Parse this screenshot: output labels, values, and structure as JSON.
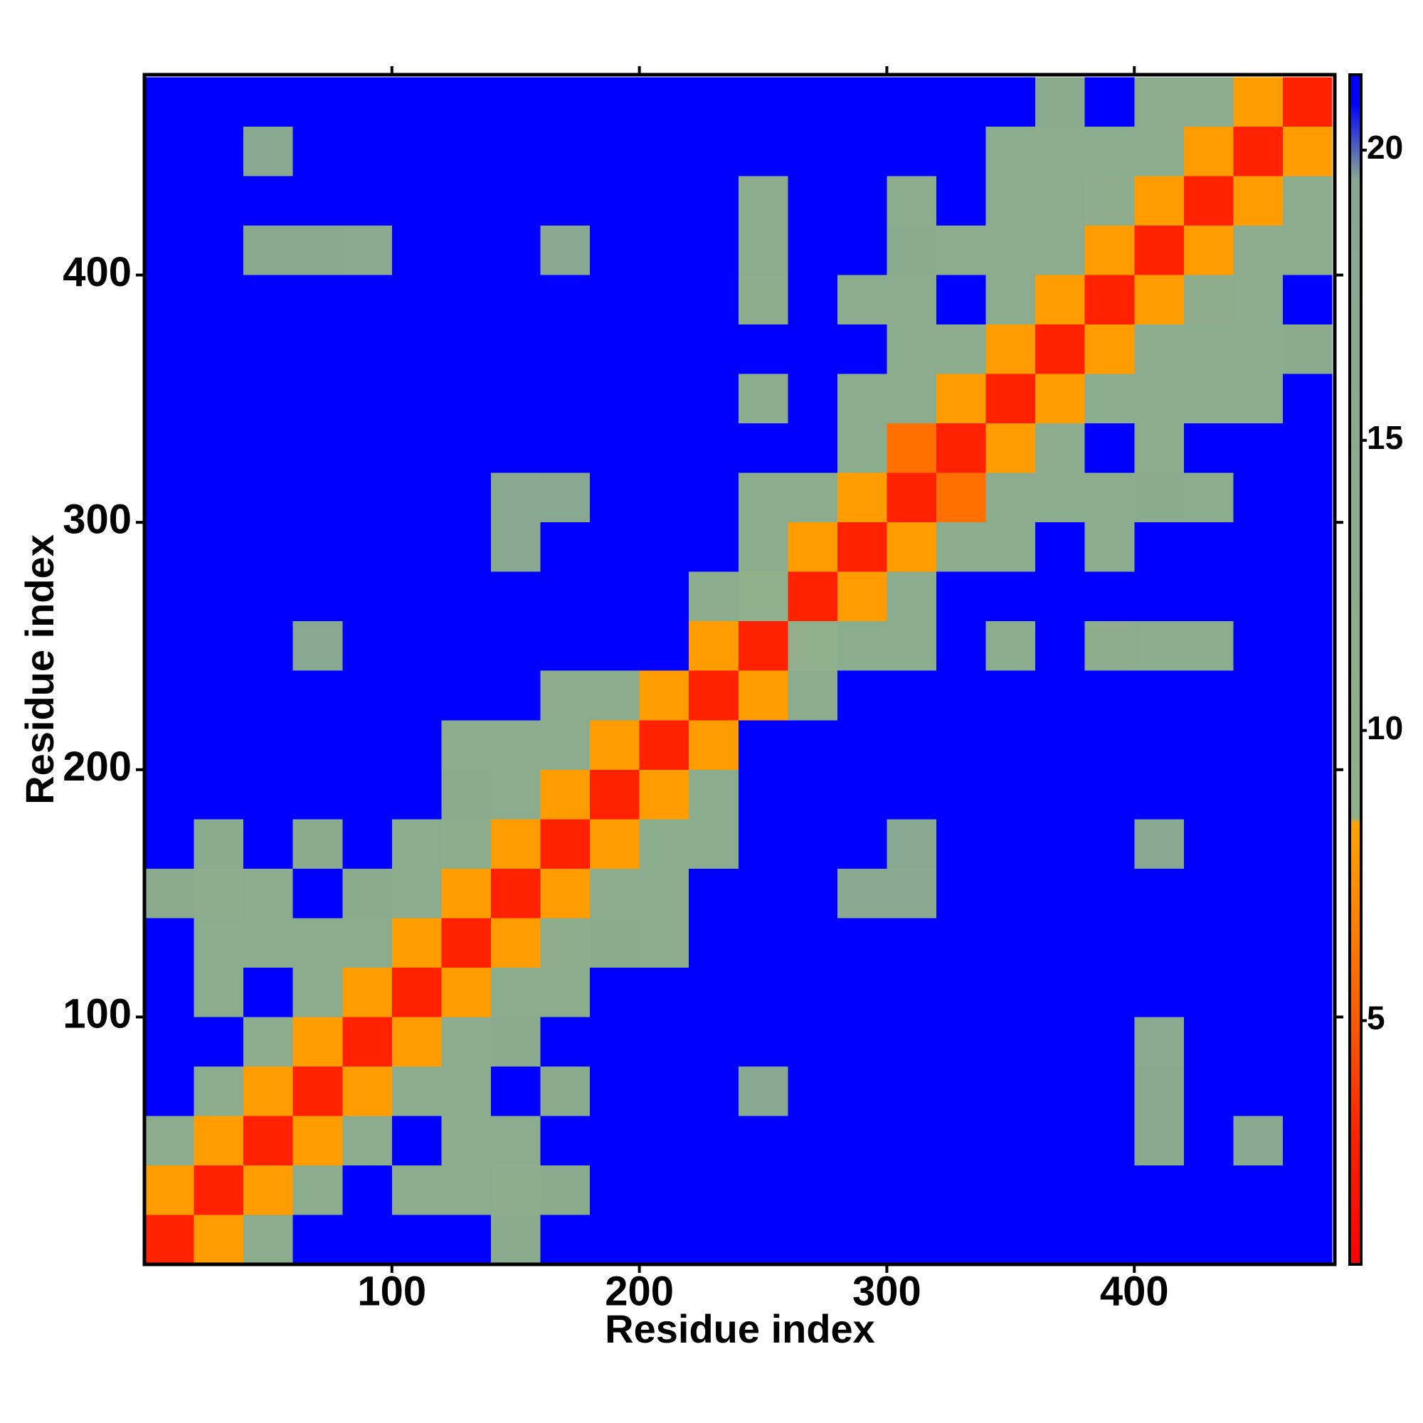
{
  "chart_data": {
    "type": "heatmap",
    "xlabel": "Residue index",
    "ylabel": "Residue index",
    "x_edges": [
      0,
      20,
      40,
      60,
      80,
      100,
      120,
      140,
      160,
      180,
      200,
      220,
      240,
      260,
      280,
      300,
      320,
      340,
      360,
      380,
      400,
      420,
      440,
      460,
      480
    ],
    "y_edges": [
      0,
      20,
      40,
      60,
      80,
      100,
      120,
      140,
      160,
      180,
      200,
      220,
      240,
      260,
      280,
      300,
      320,
      340,
      360,
      380,
      400,
      420,
      440,
      460,
      480
    ],
    "xlim": [
      0,
      481
    ],
    "ylim": [
      0,
      481
    ],
    "xticks": [
      100,
      200,
      300,
      400
    ],
    "yticks": [
      100,
      200,
      300,
      400
    ],
    "colorbar": {
      "lim": [
        0.8,
        21.3
      ],
      "ticks": [
        5,
        10,
        15,
        20
      ]
    },
    "colorscale": [
      [
        0.8,
        "#ff0000"
      ],
      [
        3,
        "#ff2200"
      ],
      [
        5,
        "#ff5a00"
      ],
      [
        8.4,
        "#ffa500"
      ],
      [
        8.5,
        "#8fb08a"
      ],
      [
        19.5,
        "#88a892"
      ],
      [
        20.8,
        "#0000ff"
      ],
      [
        21.3,
        "#0000ff"
      ]
    ],
    "z": [
      [
        3,
        8,
        13,
        21,
        21,
        21,
        21,
        15,
        21,
        21,
        21,
        21,
        21,
        21,
        21,
        21,
        21,
        21,
        21,
        21,
        21,
        21,
        21,
        21
      ],
      [
        8,
        3,
        8,
        14,
        21,
        14,
        13,
        12,
        15,
        21,
        21,
        21,
        21,
        21,
        21,
        21,
        21,
        21,
        21,
        21,
        21,
        21,
        21,
        21
      ],
      [
        13,
        8,
        3,
        8,
        13,
        21,
        14,
        13,
        21,
        21,
        21,
        21,
        21,
        21,
        21,
        21,
        21,
        21,
        21,
        21,
        17,
        21,
        18,
        21
      ],
      [
        21,
        14,
        8,
        3,
        8,
        13,
        14,
        21,
        15,
        21,
        21,
        21,
        19,
        21,
        21,
        21,
        21,
        21,
        21,
        21,
        17,
        21,
        21,
        21
      ],
      [
        21,
        21,
        13,
        8,
        3,
        8,
        13,
        15,
        21,
        21,
        21,
        21,
        21,
        21,
        21,
        21,
        21,
        21,
        21,
        21,
        16,
        21,
        21,
        21
      ],
      [
        21,
        14,
        21,
        13,
        8,
        3,
        8,
        13,
        14,
        21,
        21,
        21,
        21,
        21,
        21,
        21,
        21,
        21,
        21,
        21,
        21,
        21,
        21,
        21
      ],
      [
        21,
        13,
        14,
        14,
        13,
        8,
        3,
        8,
        12,
        15,
        14,
        21,
        21,
        21,
        21,
        21,
        21,
        21,
        21,
        21,
        21,
        21,
        21,
        21
      ],
      [
        15,
        12,
        13,
        21,
        15,
        13,
        8,
        3,
        8,
        13,
        14,
        21,
        21,
        21,
        18,
        18,
        21,
        21,
        21,
        21,
        21,
        21,
        21,
        21
      ],
      [
        21,
        15,
        21,
        15,
        21,
        14,
        12,
        8,
        3,
        8,
        13,
        14,
        21,
        21,
        21,
        19,
        21,
        21,
        21,
        21,
        19,
        21,
        21,
        21
      ],
      [
        21,
        21,
        21,
        21,
        21,
        21,
        15,
        13,
        8,
        3,
        8,
        14,
        21,
        21,
        21,
        21,
        21,
        21,
        21,
        21,
        21,
        21,
        21,
        21
      ],
      [
        21,
        21,
        21,
        21,
        21,
        21,
        14,
        14,
        13,
        8,
        3,
        8,
        21,
        21,
        21,
        21,
        21,
        21,
        21,
        21,
        21,
        21,
        21,
        21
      ],
      [
        21,
        21,
        21,
        21,
        21,
        21,
        21,
        21,
        14,
        14,
        8,
        3,
        8,
        14,
        21,
        21,
        21,
        21,
        21,
        21,
        21,
        21,
        21,
        21
      ],
      [
        21,
        21,
        21,
        19,
        21,
        21,
        21,
        21,
        21,
        21,
        21,
        8,
        3,
        9,
        13,
        14,
        21,
        13,
        21,
        12,
        14,
        14,
        21,
        21
      ],
      [
        21,
        21,
        21,
        21,
        21,
        21,
        21,
        21,
        21,
        21,
        21,
        14,
        9,
        3,
        8,
        13,
        21,
        21,
        21,
        21,
        21,
        21,
        21,
        21
      ],
      [
        21,
        21,
        21,
        21,
        21,
        21,
        21,
        18,
        21,
        21,
        21,
        21,
        13,
        8,
        3,
        8,
        13,
        14,
        21,
        14,
        21,
        21,
        21,
        21
      ],
      [
        21,
        21,
        21,
        21,
        21,
        21,
        21,
        18,
        19,
        21,
        21,
        21,
        14,
        13,
        8,
        3,
        6,
        13,
        14,
        14,
        15,
        14,
        21,
        21
      ],
      [
        21,
        21,
        21,
        21,
        21,
        21,
        21,
        21,
        21,
        21,
        21,
        21,
        21,
        21,
        13,
        6,
        3,
        8,
        13,
        21,
        14,
        21,
        21,
        21
      ],
      [
        21,
        21,
        21,
        21,
        21,
        21,
        21,
        21,
        21,
        21,
        21,
        21,
        13,
        21,
        14,
        13,
        8,
        3,
        8,
        13,
        14,
        14,
        14,
        21
      ],
      [
        21,
        21,
        21,
        21,
        21,
        21,
        21,
        21,
        21,
        21,
        21,
        21,
        21,
        21,
        21,
        14,
        13,
        8,
        3,
        8,
        13,
        14,
        14,
        15
      ],
      [
        21,
        21,
        21,
        21,
        21,
        21,
        21,
        21,
        21,
        21,
        21,
        21,
        12,
        21,
        14,
        14,
        21,
        13,
        8,
        3,
        8,
        12,
        14,
        21
      ],
      [
        21,
        21,
        17,
        17,
        16,
        21,
        21,
        21,
        19,
        21,
        21,
        21,
        14,
        21,
        21,
        15,
        14,
        14,
        13,
        8,
        3,
        8,
        13,
        14
      ],
      [
        21,
        21,
        21,
        21,
        21,
        21,
        21,
        21,
        21,
        21,
        21,
        21,
        14,
        21,
        21,
        14,
        21,
        14,
        14,
        12,
        8,
        3,
        8,
        13
      ],
      [
        21,
        21,
        18,
        21,
        21,
        21,
        21,
        21,
        21,
        21,
        21,
        21,
        21,
        21,
        21,
        21,
        21,
        14,
        14,
        14,
        13,
        8,
        3,
        8
      ],
      [
        21,
        21,
        21,
        21,
        21,
        21,
        21,
        21,
        21,
        21,
        21,
        21,
        21,
        21,
        21,
        21,
        21,
        21,
        15,
        21,
        14,
        13,
        8,
        3
      ]
    ]
  }
}
